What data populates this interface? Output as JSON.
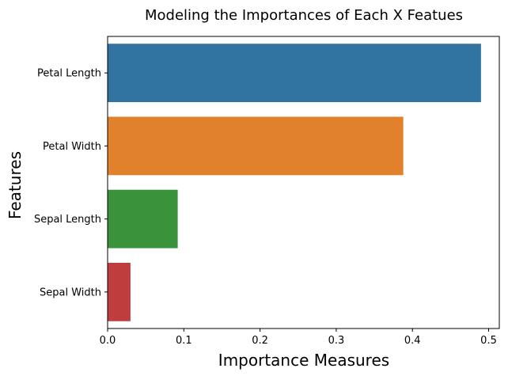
{
  "chart_data": {
    "type": "bar",
    "orientation": "horizontal",
    "title": "Modeling the Importances of Each X Featues",
    "xlabel": "Importance Measures",
    "ylabel": "Features",
    "categories": [
      "Petal Length",
      "Petal Width",
      "Sepal Length",
      "Sepal Width"
    ],
    "values": [
      0.49,
      0.388,
      0.092,
      0.03
    ],
    "colors": [
      "#3274a1",
      "#e1812c",
      "#3a923a",
      "#c03d3e"
    ],
    "xlim": [
      0,
      0.514
    ],
    "xticks": [
      0.0,
      0.1,
      0.2,
      0.3,
      0.4,
      0.5
    ],
    "xtick_labels": [
      "0.0",
      "0.1",
      "0.2",
      "0.3",
      "0.4",
      "0.5"
    ],
    "grid": false,
    "legend": "none"
  }
}
